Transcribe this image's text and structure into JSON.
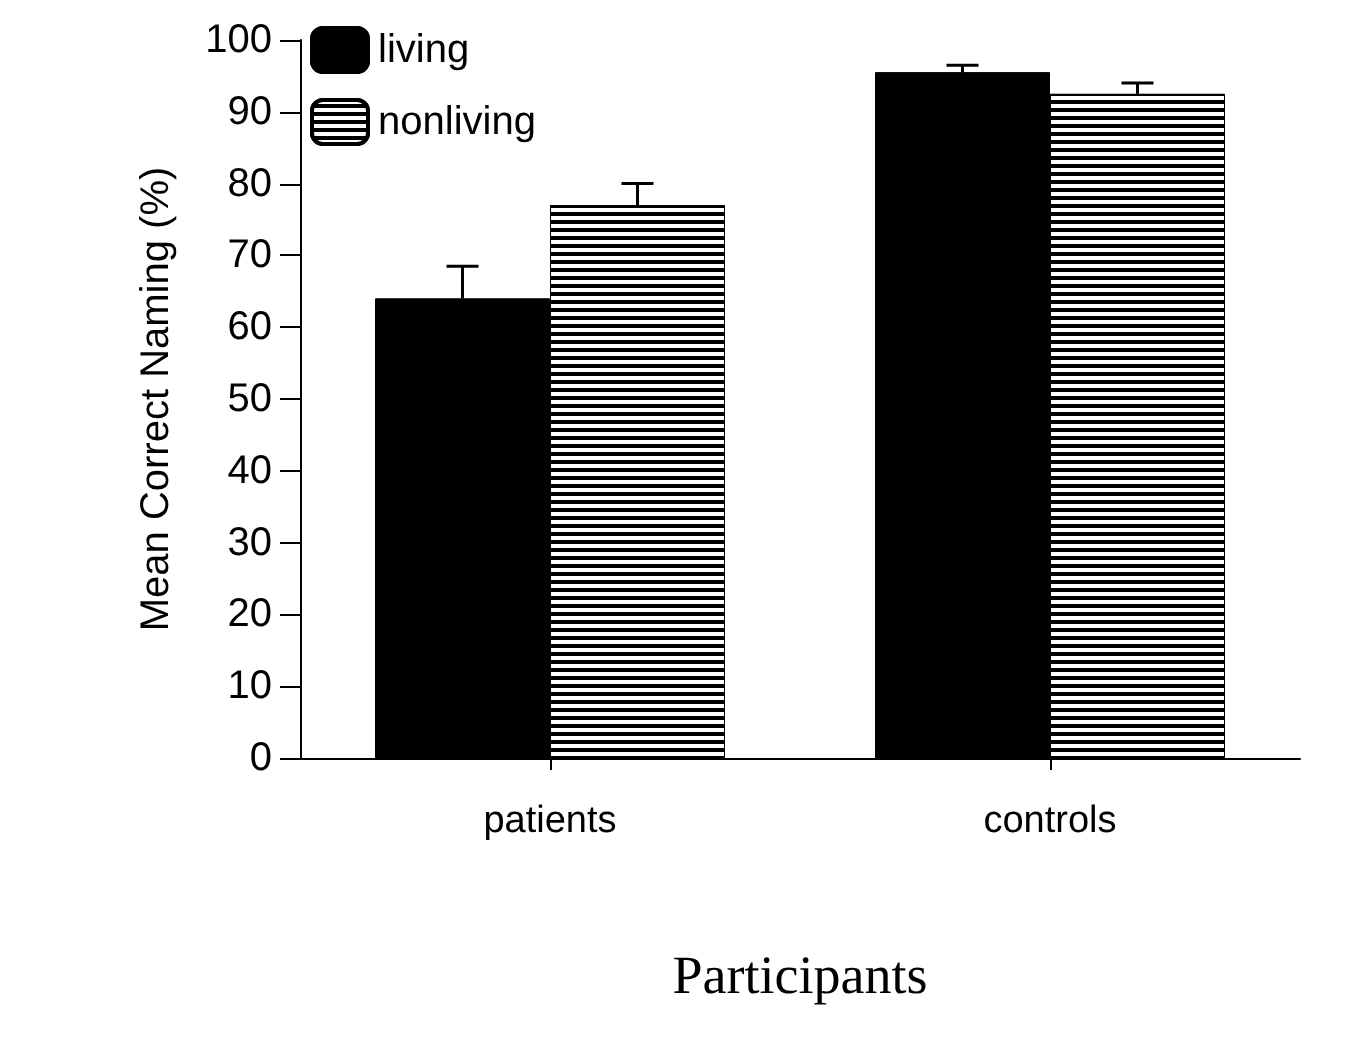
{
  "chart_data": {
    "type": "bar",
    "xlabel": "Participants",
    "ylabel": "Mean Correct Naming (%)",
    "categories": [
      "patients",
      "controls"
    ],
    "series": [
      {
        "name": "living",
        "color": "#000000",
        "values": [
          64,
          95.5
        ],
        "errors": [
          [
            64,
            68.5
          ],
          [
            95.5,
            96.5
          ]
        ]
      },
      {
        "name": "nonliving",
        "color": "#000000",
        "values": [
          77,
          92.5
        ],
        "errors": [
          [
            77,
            80
          ],
          [
            92.5,
            94
          ]
        ]
      }
    ],
    "ylim": [
      0,
      100
    ],
    "yticks": [
      0,
      10,
      20,
      30,
      40,
      50,
      60,
      70,
      80,
      90,
      100
    ],
    "grid": false,
    "legend": "top left"
  }
}
